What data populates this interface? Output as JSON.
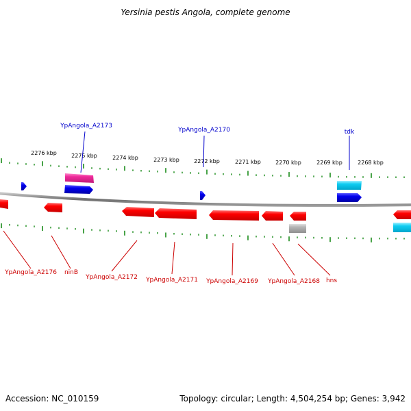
{
  "title": "Yersinia pestis Angola, complete genome",
  "footer": {
    "accession": "Accession: NC_010159",
    "summary": "Topology: circular; Length: 4,504,254 bp; Genes: 3,942"
  },
  "kbp_labels": [
    "2276 kbp",
    "2275 kbp",
    "2274 kbp",
    "2273 kbp",
    "2272 kbp",
    "2271 kbp",
    "2270 kbp",
    "2269 kbp",
    "2268 kbp"
  ],
  "upper_gene_labels": [
    "YpAngola_A2173",
    "YpAngola_A2170",
    "tdk"
  ],
  "lower_gene_labels": [
    "YpAngola_A2176",
    "ninB",
    "YpAngola_A2172",
    "YpAngola_A2171",
    "YpAngola_A2169",
    "YpAngola_A2168",
    "hns"
  ],
  "colors": {
    "backbone": "#7f7f7f",
    "ticks": "#1a8c1a",
    "blue_gene": "#0000dd",
    "red_gene": "#ee0000",
    "pink_gene": "#ee2a9a",
    "cyan_gene": "#00c8ee",
    "gray_gene": "#b0b0b0",
    "blue_label": "#0000cc",
    "red_label": "#cc0000"
  }
}
